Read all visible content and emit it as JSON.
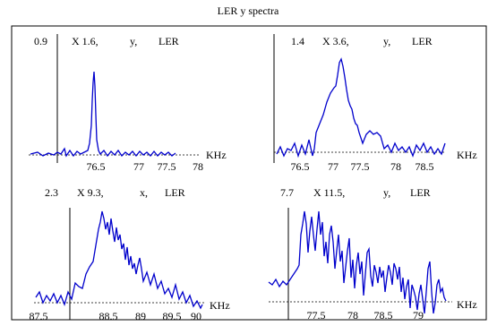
{
  "title": "LER y spectra",
  "chart_data": [
    {
      "type": "line",
      "label": [
        "0.9",
        "X 1.6,",
        "y,",
        "LER"
      ],
      "xunit": "KHz",
      "xticks": [
        "76.5",
        "77",
        "77.5",
        "78"
      ],
      "color": "#0000cc",
      "peak_x": "76.5–77"
    },
    {
      "type": "line",
      "label": [
        "1.4",
        "X 3.6,",
        "y,",
        "LER"
      ],
      "xunit": "KHz",
      "xticks": [
        "76.5",
        "77",
        "77.5",
        "78",
        "78.5"
      ],
      "color": "#0000cc",
      "peak_x": "77–77.5"
    },
    {
      "type": "line",
      "label": [
        "2.3",
        "X 9.3,",
        "x,",
        "LER"
      ],
      "xunit": "KHz",
      "xticks": [
        "87.5",
        "88.5",
        "89",
        "89.5",
        "90"
      ],
      "color": "#0000cc",
      "peak_x": "88.5"
    },
    {
      "type": "line",
      "label": [
        "7.7",
        "X 11.5,",
        "y,",
        "LER"
      ],
      "xunit": "KHz",
      "xticks": [
        "77.5",
        "78",
        "78.5",
        "79"
      ],
      "color": "#0000cc",
      "peak_x": "77.5"
    }
  ]
}
